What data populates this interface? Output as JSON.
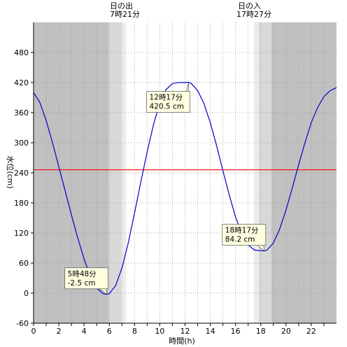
{
  "chart_data": {
    "type": "line",
    "title": "",
    "xlabel": "時間(h)",
    "ylabel": "水位(cm)",
    "xlim": [
      0,
      24
    ],
    "ylim": [
      -60,
      540
    ],
    "xticks": [
      0,
      2,
      4,
      6,
      8,
      10,
      12,
      14,
      16,
      18,
      20,
      22
    ],
    "yticks": [
      -60,
      0,
      60,
      120,
      180,
      240,
      300,
      360,
      420,
      480
    ],
    "reference_line": {
      "value": 246,
      "color": "#ff0000"
    },
    "sunrise": {
      "label_top": "日の出",
      "label_time": "7時21分",
      "hour": 7.35
    },
    "sunset": {
      "label_top": "日の入",
      "label_time": "17時27分",
      "hour": 17.45
    },
    "series": [
      {
        "color": "#0000cc",
        "x": [
          0.0,
          0.5,
          1.0,
          1.5,
          2.0,
          2.5,
          3.0,
          3.5,
          4.0,
          4.5,
          5.0,
          5.5,
          5.8,
          6.0,
          6.5,
          7.0,
          7.5,
          8.0,
          8.5,
          9.0,
          9.5,
          10.0,
          10.5,
          11.0,
          11.5,
          12.0,
          12.28,
          12.5,
          13.0,
          13.5,
          14.0,
          14.5,
          15.0,
          15.5,
          16.0,
          16.5,
          17.0,
          17.5,
          18.0,
          18.28,
          18.5,
          19.0,
          19.5,
          20.0,
          20.5,
          21.0,
          21.5,
          22.0,
          22.5,
          23.0,
          23.5,
          24.0
        ],
        "y": [
          400,
          380,
          344,
          300,
          252,
          204,
          156,
          110,
          68,
          34,
          10,
          -1,
          -2.5,
          -1,
          15,
          50,
          100,
          160,
          222,
          282,
          336,
          380,
          406,
          418,
          420,
          420,
          420.5,
          418,
          404,
          378,
          340,
          294,
          244,
          196,
          152,
          118,
          96,
          86,
          84.5,
          84.2,
          86,
          100,
          128,
          166,
          210,
          256,
          300,
          340,
          370,
          392,
          404,
          410
        ]
      }
    ],
    "annotations": [
      {
        "text_time": "5時48分",
        "text_value": "-2.5 cm",
        "x": 5.8,
        "y": -2.5
      },
      {
        "text_time": "12時17分",
        "text_value": "420.5 cm",
        "x": 12.28,
        "y": 420.5
      },
      {
        "text_time": "18時17分",
        "text_value": "84.2 cm",
        "x": 18.28,
        "y": 84.2
      }
    ],
    "colors": {
      "night": "#c0c0c0",
      "twilight_outer": "#d8d8d8",
      "twilight_inner": "#ececec",
      "day": "#ffffff",
      "callout": "#ffffe0"
    }
  }
}
